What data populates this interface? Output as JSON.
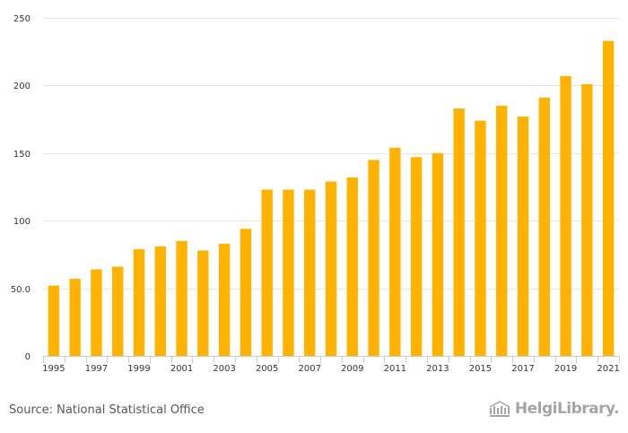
{
  "chart_data": {
    "type": "bar",
    "title": "",
    "xlabel": "",
    "ylabel": "",
    "categories": [
      "1995",
      "1996",
      "1997",
      "1998",
      "1999",
      "2000",
      "2001",
      "2002",
      "2003",
      "2004",
      "2005",
      "2006",
      "2007",
      "2008",
      "2009",
      "2010",
      "2011",
      "2012",
      "2013",
      "2014",
      "2015",
      "2016",
      "2017",
      "2018",
      "2019",
      "2020",
      "2021"
    ],
    "x_tick_labels": [
      "1995",
      "1997",
      "1999",
      "2001",
      "2003",
      "2005",
      "2007",
      "2009",
      "2011",
      "2013",
      "2015",
      "2017",
      "2019",
      "2021"
    ],
    "values": [
      52,
      57,
      64,
      66,
      79,
      81,
      85,
      78,
      83,
      94,
      123,
      123,
      123,
      129,
      132,
      145,
      154,
      147,
      150,
      183,
      174,
      185,
      177,
      191,
      207,
      201,
      233
    ],
    "ylim": [
      0,
      250
    ],
    "y_ticks": [
      0,
      50,
      100,
      150,
      200,
      250
    ],
    "y_tick_labels": [
      "0",
      "50.0",
      "100",
      "150",
      "200",
      "250"
    ],
    "grid": true,
    "bar_color": "#ffb200"
  },
  "footer": {
    "source": "Source: National Statistical Office",
    "brand": "HelgiLibrary."
  },
  "colors": {
    "grid": "#e6e6e6",
    "axis": "#cccccc",
    "text": "#333333"
  }
}
